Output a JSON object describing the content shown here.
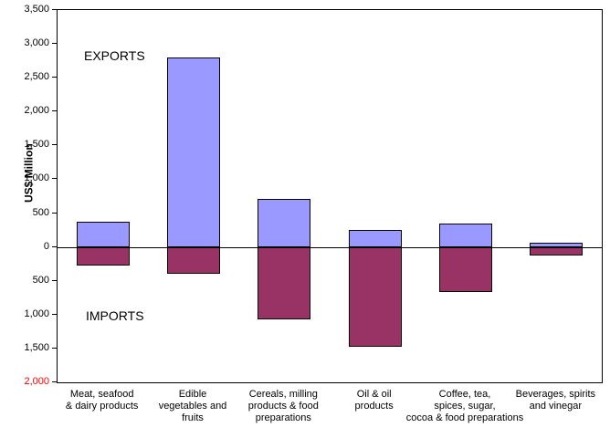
{
  "chart_data": {
    "type": "bar",
    "title": "",
    "xlabel": "",
    "ylabel": "US$ Million",
    "ylim": [
      -2000,
      3500
    ],
    "ytick_step": 500,
    "grid": false,
    "legend": "none",
    "annotations": {
      "exports": "EXPORTS",
      "imports": "IMPORTS"
    },
    "categories": [
      {
        "label": "Meat, seafood & dairy products",
        "lines": [
          "Meat, seafood",
          "& dairy products"
        ]
      },
      {
        "label": "Edible vegetables and fruits",
        "lines": [
          "Edible",
          "vegetables and",
          "fruits"
        ]
      },
      {
        "label": "Cereals, milling products & food preparations",
        "lines": [
          "Cereals, milling",
          "products & food",
          "preparations"
        ]
      },
      {
        "label": "Oil & oil products",
        "lines": [
          "Oil & oil",
          "products"
        ]
      },
      {
        "label": "Coffee, tea, spices, sugar, cocoa & food preparations",
        "lines": [
          "Coffee, tea,",
          "spices, sugar,",
          "cocoa & food preparations"
        ]
      },
      {
        "label": "Beverages, spirits and vinegar",
        "lines": [
          "Beverages, spirits",
          "and vinegar"
        ]
      }
    ],
    "series": [
      {
        "name": "Exports",
        "color": "#9999ff",
        "border": "#000000",
        "values": [
          370,
          2800,
          715,
          250,
          340,
          60
        ]
      },
      {
        "name": "Imports",
        "color": "#993366",
        "border": "#000000",
        "values": [
          -280,
          -400,
          -1070,
          -1480,
          -670,
          -120
        ]
      }
    ],
    "yticks": [
      {
        "value": 3500,
        "label": "3,500",
        "color": "#000000"
      },
      {
        "value": 3000,
        "label": "3,000",
        "color": "#000000"
      },
      {
        "value": 2500,
        "label": "2,500",
        "color": "#000000"
      },
      {
        "value": 2000,
        "label": "2,000",
        "color": "#000000"
      },
      {
        "value": 1500,
        "label": "1,500",
        "color": "#000000"
      },
      {
        "value": 1000,
        "label": "1,000",
        "color": "#000000"
      },
      {
        "value": 500,
        "label": "500",
        "color": "#000000"
      },
      {
        "value": 0,
        "label": "0",
        "color": "#000000"
      },
      {
        "value": -500,
        "label": "500",
        "color": "#000000"
      },
      {
        "value": -1000,
        "label": "1,000",
        "color": "#000000"
      },
      {
        "value": -1500,
        "label": "1,500",
        "color": "#000000"
      },
      {
        "value": -2000,
        "label": "2,000",
        "color": "#ff0000"
      }
    ]
  }
}
